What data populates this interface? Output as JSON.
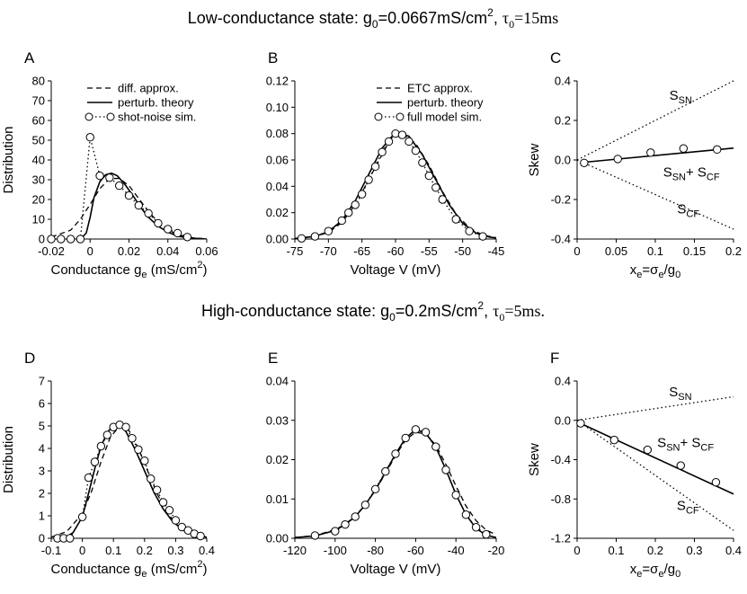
{
  "header_low": {
    "prefix": "Low-conductance state: g",
    "sub0": "0",
    "mid": "=0.0667mS/cm",
    "sup2": "2",
    "comma": ", ",
    "tau": "τ",
    "tsub": "0",
    "tval": "=15ms"
  },
  "header_high": {
    "prefix": "High-conductance state: g",
    "sub0": "0",
    "mid": "=0.2mS/cm",
    "sup2": "2",
    "comma": ", ",
    "tau": "τ",
    "tsub": "0",
    "tval": "=5ms."
  },
  "colors": {
    "ink": "#000000",
    "marker_fill": "#ffffff"
  },
  "chart_data": [
    {
      "id": "A",
      "type": "line",
      "panel_letter": "A",
      "xlabel": "Conductance g",
      "xlabel_sub": "e",
      "xlabel_unit": " (mS/cm",
      "xlabel_sup": "2",
      "xlabel_close": ")",
      "ylabel": "Distribution",
      "xlim": [
        -0.02,
        0.06
      ],
      "ylim": [
        0,
        80
      ],
      "xticks": [
        -0.02,
        0,
        0.02,
        0.04,
        0.06
      ],
      "xtick_labels": [
        "-0.02",
        "0",
        "0.02",
        "0.04",
        "0.06"
      ],
      "yticks": [
        0,
        10,
        20,
        30,
        40,
        50,
        60,
        70,
        80
      ],
      "ytick_labels": [
        "0",
        "10",
        "20",
        "30",
        "40",
        "50",
        "60",
        "70",
        "80"
      ],
      "legend": {
        "position": "top-right",
        "entries": [
          {
            "label": "diff. approx.",
            "style": "dashed"
          },
          {
            "label": "perturb. theory",
            "style": "solid"
          },
          {
            "label": "shot-noise sim.",
            "style": "dotted-markers"
          }
        ]
      },
      "series": [
        {
          "name": "diff. approx.",
          "style": "dashed",
          "x": [
            -0.02,
            -0.01,
            -0.005,
            0.0,
            0.005,
            0.01,
            0.015,
            0.02,
            0.025,
            0.03,
            0.035,
            0.04,
            0.045,
            0.05,
            0.055,
            0.06
          ],
          "y": [
            1,
            4.5,
            10,
            17.5,
            25.5,
            30.5,
            30.7,
            27,
            20.5,
            14,
            8.5,
            4.6,
            2.2,
            1,
            0.4,
            0.1
          ]
        },
        {
          "name": "perturb. theory",
          "style": "solid",
          "x": [
            -0.005,
            -0.002,
            0.0,
            0.002,
            0.005,
            0.008,
            0.011,
            0.014,
            0.018,
            0.022,
            0.026,
            0.03,
            0.035,
            0.04,
            0.045,
            0.05,
            0.06
          ],
          "y": [
            0,
            3,
            11,
            21,
            29,
            32.5,
            33.3,
            32,
            27.5,
            22,
            16,
            11,
            6.5,
            3.5,
            1.5,
            0.6,
            0
          ]
        },
        {
          "name": "shot-noise sim.",
          "style": "dotted-markers",
          "x": [
            -0.02,
            -0.015,
            -0.01,
            -0.005,
            0.0,
            0.005,
            0.01,
            0.015,
            0.02,
            0.025,
            0.03,
            0.035,
            0.04,
            0.045,
            0.05
          ],
          "y": [
            0,
            0,
            0,
            0,
            51.5,
            32,
            31,
            27,
            22,
            17,
            13,
            8,
            5,
            3,
            1
          ]
        }
      ]
    },
    {
      "id": "B",
      "type": "line",
      "panel_letter": "B",
      "xlabel": "Voltage V (mV)",
      "ylabel": "",
      "xlim": [
        -75,
        -45
      ],
      "ylim": [
        0,
        0.12
      ],
      "xticks": [
        -75,
        -70,
        -65,
        -60,
        -55,
        -50,
        -45
      ],
      "xtick_labels": [
        "-75",
        "-70",
        "-65",
        "-60",
        "-55",
        "-50",
        "-45"
      ],
      "yticks": [
        0,
        0.02,
        0.04,
        0.06,
        0.08,
        0.1,
        0.12
      ],
      "ytick_labels": [
        "0.00",
        "0.02",
        "0.04",
        "0.06",
        "0.08",
        "0.10",
        "0.12"
      ],
      "legend": {
        "position": "top-right",
        "entries": [
          {
            "label": "ETC approx.",
            "style": "dashed"
          },
          {
            "label": "perturb. theory",
            "style": "solid"
          },
          {
            "label": "full model sim.",
            "style": "dotted-markers"
          }
        ]
      },
      "series": [
        {
          "name": "ETC approx.",
          "style": "dashed",
          "x": [
            -75,
            -72,
            -70,
            -68,
            -66,
            -64,
            -62,
            -60.5,
            -59,
            -57,
            -55,
            -53,
            -51,
            -49,
            -47,
            -45
          ],
          "y": [
            0.0004,
            0.002,
            0.005,
            0.0125,
            0.026,
            0.045,
            0.064,
            0.0785,
            0.0795,
            0.0725,
            0.056,
            0.036,
            0.019,
            0.0085,
            0.003,
            0.001
          ]
        },
        {
          "name": "perturb. theory",
          "style": "solid",
          "x": [
            -75,
            -72,
            -70,
            -68,
            -66,
            -64,
            -62,
            -60,
            -58,
            -56,
            -54,
            -52,
            -50,
            -48,
            -46,
            -45
          ],
          "y": [
            0.0004,
            0.002,
            0.0055,
            0.014,
            0.029,
            0.049,
            0.069,
            0.081,
            0.078,
            0.064,
            0.045,
            0.026,
            0.012,
            0.0045,
            0.0015,
            0.0008
          ]
        },
        {
          "name": "full model sim.",
          "style": "dotted-markers",
          "x": [
            -74,
            -72,
            -70,
            -68,
            -67,
            -66,
            -65,
            -64,
            -63,
            -62,
            -61,
            -60,
            -59,
            -58,
            -57,
            -56,
            -55,
            -54,
            -53,
            -51,
            -49,
            -47
          ],
          "y": [
            0.0005,
            0.002,
            0.006,
            0.014,
            0.02,
            0.026,
            0.034,
            0.045,
            0.055,
            0.066,
            0.074,
            0.08,
            0.079,
            0.074,
            0.067,
            0.058,
            0.048,
            0.039,
            0.03,
            0.015,
            0.006,
            0.002
          ]
        }
      ]
    },
    {
      "id": "C",
      "type": "line",
      "panel_letter": "C",
      "xlabel": "x",
      "xlabel_sub": "e",
      "xlabel_rest": "=σ",
      "xlabel_sub2": "e",
      "xlabel_rest2": "/g",
      "xlabel_sub3": "0",
      "ylabel": "Skew",
      "xlim": [
        0,
        0.2
      ],
      "ylim": [
        -0.4,
        0.4
      ],
      "xticks": [
        0,
        0.05,
        0.1,
        0.15,
        0.2
      ],
      "xtick_labels": [
        "0",
        "0.05",
        "0.1",
        "0.15",
        "0.2"
      ],
      "yticks": [
        -0.4,
        -0.2,
        0,
        0.2,
        0.4
      ],
      "ytick_labels": [
        "-0.4",
        "-0.2",
        "0.0",
        "0.2",
        "0.4"
      ],
      "annotations": [
        {
          "text": "S",
          "sub": "SN",
          "x": 0.118,
          "y": 0.305
        },
        {
          "text": "S",
          "sub": "SN",
          "plus": "+ S",
          "sub2": "CF",
          "x": 0.11,
          "y": -0.085
        },
        {
          "text": "S",
          "sub": "CF",
          "x": 0.128,
          "y": -0.27
        }
      ],
      "series": [
        {
          "name": "S_SN",
          "style": "dotted",
          "x": [
            0,
            0.2
          ],
          "y": [
            0,
            0.4
          ]
        },
        {
          "name": "S_CF",
          "style": "dotted",
          "x": [
            0,
            0.2
          ],
          "y": [
            0,
            -0.35
          ]
        },
        {
          "name": "S_SN + S_CF",
          "style": "solid",
          "x": [
            0.008,
            0.2
          ],
          "y": [
            -0.012,
            0.06
          ]
        },
        {
          "name": "sim",
          "style": "markers",
          "x": [
            0.009,
            0.052,
            0.094,
            0.136,
            0.179
          ],
          "y": [
            -0.015,
            0.005,
            0.037,
            0.058,
            0.053
          ]
        }
      ]
    },
    {
      "id": "D",
      "type": "line",
      "panel_letter": "D",
      "xlabel": "Conductance g",
      "xlabel_sub": "e",
      "xlabel_unit": " (mS/cm",
      "xlabel_sup": "2",
      "xlabel_close": ")",
      "ylabel": "Distribution",
      "xlim": [
        -0.1,
        0.4
      ],
      "ylim": [
        0,
        7
      ],
      "xticks": [
        -0.1,
        0,
        0.1,
        0.2,
        0.3,
        0.4
      ],
      "xtick_labels": [
        "-0.1",
        "0",
        "0.1",
        "0.2",
        "0.3",
        "0.4"
      ],
      "yticks": [
        0,
        1,
        2,
        3,
        4,
        5,
        6,
        7
      ],
      "ytick_labels": [
        "0",
        "1",
        "2",
        "3",
        "4",
        "5",
        "6",
        "7"
      ],
      "series": [
        {
          "name": "diff. approx.",
          "style": "dashed",
          "x": [
            -0.1,
            -0.05,
            0.0,
            0.03,
            0.06,
            0.09,
            0.12,
            0.15,
            0.18,
            0.21,
            0.24,
            0.27,
            0.3,
            0.33,
            0.36,
            0.4
          ],
          "y": [
            0.05,
            0.3,
            1.1,
            2.1,
            3.4,
            4.5,
            5.0,
            4.8,
            4.0,
            3.0,
            2.0,
            1.2,
            0.65,
            0.3,
            0.12,
            0.03
          ]
        },
        {
          "name": "perturb. theory",
          "style": "solid",
          "x": [
            -0.06,
            -0.03,
            0.0,
            0.02,
            0.04,
            0.06,
            0.08,
            0.1,
            0.12,
            0.14,
            0.17,
            0.2,
            0.23,
            0.26,
            0.29,
            0.32,
            0.36,
            0.4
          ],
          "y": [
            0,
            0.25,
            0.95,
            2.0,
            3.1,
            4.1,
            4.7,
            5.05,
            5.05,
            4.75,
            3.95,
            3.0,
            2.05,
            1.3,
            0.75,
            0.4,
            0.15,
            0.05
          ]
        },
        {
          "name": "shot-noise sim.",
          "style": "dotted-markers",
          "x": [
            -0.08,
            -0.06,
            -0.04,
            0.0,
            0.02,
            0.04,
            0.06,
            0.08,
            0.1,
            0.12,
            0.14,
            0.16,
            0.18,
            0.2,
            0.22,
            0.24,
            0.26,
            0.28,
            0.3,
            0.32,
            0.34,
            0.36,
            0.38
          ],
          "y": [
            0,
            0,
            0,
            0.95,
            2.7,
            3.4,
            4.1,
            4.6,
            4.95,
            5.05,
            4.95,
            4.45,
            3.95,
            3.45,
            2.65,
            2.15,
            1.6,
            1.25,
            0.8,
            0.5,
            0.35,
            0.2,
            0.1
          ]
        }
      ]
    },
    {
      "id": "E",
      "type": "line",
      "panel_letter": "E",
      "xlabel": "Voltage V (mV)",
      "ylabel": "",
      "xlim": [
        -120,
        -20
      ],
      "ylim": [
        0,
        0.04
      ],
      "xticks": [
        -120,
        -100,
        -80,
        -60,
        -40,
        -20
      ],
      "xtick_labels": [
        "-120",
        "-100",
        "-80",
        "-60",
        "-40",
        "-20"
      ],
      "yticks": [
        0,
        0.01,
        0.02,
        0.03,
        0.04
      ],
      "ytick_labels": [
        "0.00",
        "0.01",
        "0.02",
        "0.03",
        "0.04"
      ],
      "series": [
        {
          "name": "ETC approx.",
          "style": "dashed",
          "x": [
            -120,
            -110,
            -100,
            -95,
            -90,
            -85,
            -80,
            -75,
            -70,
            -65,
            -60,
            -55,
            -50,
            -45,
            -40,
            -35,
            -30,
            -25,
            -20
          ],
          "y": [
            0.0002,
            0.0007,
            0.0022,
            0.0036,
            0.0057,
            0.0085,
            0.0122,
            0.0165,
            0.021,
            0.025,
            0.027,
            0.0265,
            0.0237,
            0.0188,
            0.0133,
            0.0082,
            0.0045,
            0.0021,
            0.0009
          ]
        },
        {
          "name": "perturb. theory",
          "style": "solid",
          "x": [
            -120,
            -110,
            -100,
            -95,
            -90,
            -85,
            -80,
            -75,
            -70,
            -65,
            -60,
            -55,
            -50,
            -45,
            -40,
            -35,
            -30,
            -25,
            -20
          ],
          "y": [
            0.0002,
            0.0006,
            0.002,
            0.0035,
            0.0055,
            0.0085,
            0.0123,
            0.0168,
            0.0214,
            0.0255,
            0.0276,
            0.0268,
            0.0232,
            0.0175,
            0.0112,
            0.006,
            0.0025,
            0.0008,
            0.0002
          ]
        },
        {
          "name": "full model sim.",
          "style": "dotted-markers",
          "x": [
            -110,
            -100,
            -95,
            -90,
            -85,
            -80,
            -75,
            -70,
            -65,
            -60,
            -55,
            -50,
            -45,
            -40,
            -35,
            -30,
            -25
          ],
          "y": [
            0.0007,
            0.0018,
            0.0035,
            0.0055,
            0.0085,
            0.0125,
            0.017,
            0.0215,
            0.0255,
            0.0277,
            0.027,
            0.0233,
            0.0174,
            0.011,
            0.006,
            0.0028,
            0.001
          ]
        }
      ]
    },
    {
      "id": "F",
      "type": "line",
      "panel_letter": "F",
      "xlabel": "x",
      "xlabel_sub": "e",
      "xlabel_rest": "=σ",
      "xlabel_sub2": "e",
      "xlabel_rest2": "/g",
      "xlabel_sub3": "0",
      "ylabel": "Skew",
      "xlim": [
        0,
        0.4
      ],
      "ylim": [
        -1.2,
        0.4
      ],
      "xticks": [
        0,
        0.1,
        0.2,
        0.3,
        0.4
      ],
      "xtick_labels": [
        "0",
        "0.1",
        "0.2",
        "0.3",
        "0.4"
      ],
      "yticks": [
        -1.2,
        -0.8,
        -0.4,
        0,
        0.4
      ],
      "ytick_labels": [
        "-1.2",
        "-0.8",
        "-0.4",
        "0.0",
        "0.4"
      ],
      "annotations": [
        {
          "text": "S",
          "sub": "SN",
          "x": 0.235,
          "y": 0.245
        },
        {
          "text": "S",
          "sub": "SN",
          "plus": "+ S",
          "sub2": "CF",
          "x": 0.205,
          "y": -0.27
        },
        {
          "text": "S",
          "sub": "CF",
          "x": 0.255,
          "y": -0.91
        }
      ],
      "series": [
        {
          "name": "S_SN",
          "style": "dotted",
          "x": [
            0,
            0.4
          ],
          "y": [
            0,
            0.24
          ]
        },
        {
          "name": "S_CF",
          "style": "dotted",
          "x": [
            0,
            0.4
          ],
          "y": [
            0,
            -1.12
          ]
        },
        {
          "name": "S_SN + S_CF",
          "style": "solid",
          "x": [
            0.008,
            0.4
          ],
          "y": [
            -0.03,
            -0.75
          ]
        },
        {
          "name": "sim",
          "style": "markers",
          "x": [
            0.009,
            0.095,
            0.18,
            0.265,
            0.355
          ],
          "y": [
            -0.03,
            -0.2,
            -0.3,
            -0.46,
            -0.63
          ]
        }
      ]
    }
  ]
}
